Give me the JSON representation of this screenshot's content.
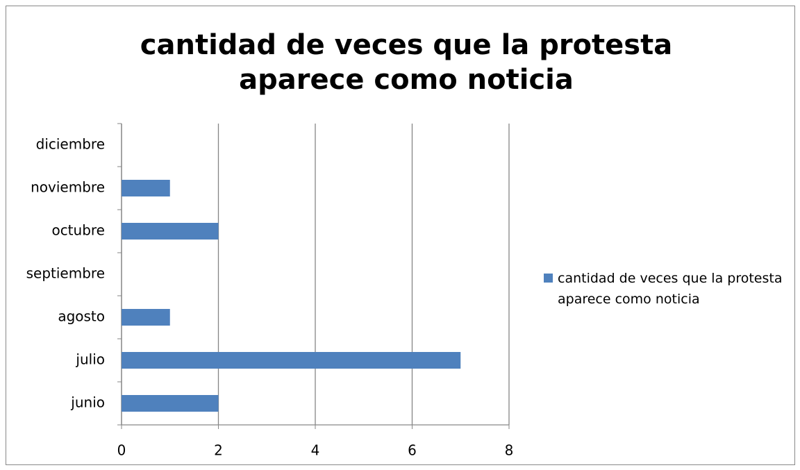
{
  "chart_data": {
    "type": "bar",
    "orientation": "horizontal",
    "title": "cantidad de veces que la protesta aparece como noticia",
    "categories": [
      "junio",
      "julio",
      "agosto",
      "septiembre",
      "octubre",
      "noviembre",
      "diciembre"
    ],
    "series": [
      {
        "name": "cantidad de veces que la protesta aparece como noticia",
        "color": "#4f81bd",
        "values": [
          2,
          7,
          1,
          0,
          2,
          1,
          0
        ]
      }
    ],
    "xlim": [
      0,
      8
    ],
    "xticks": [
      0,
      2,
      4,
      6,
      8
    ],
    "grid": true,
    "legend": "right"
  }
}
